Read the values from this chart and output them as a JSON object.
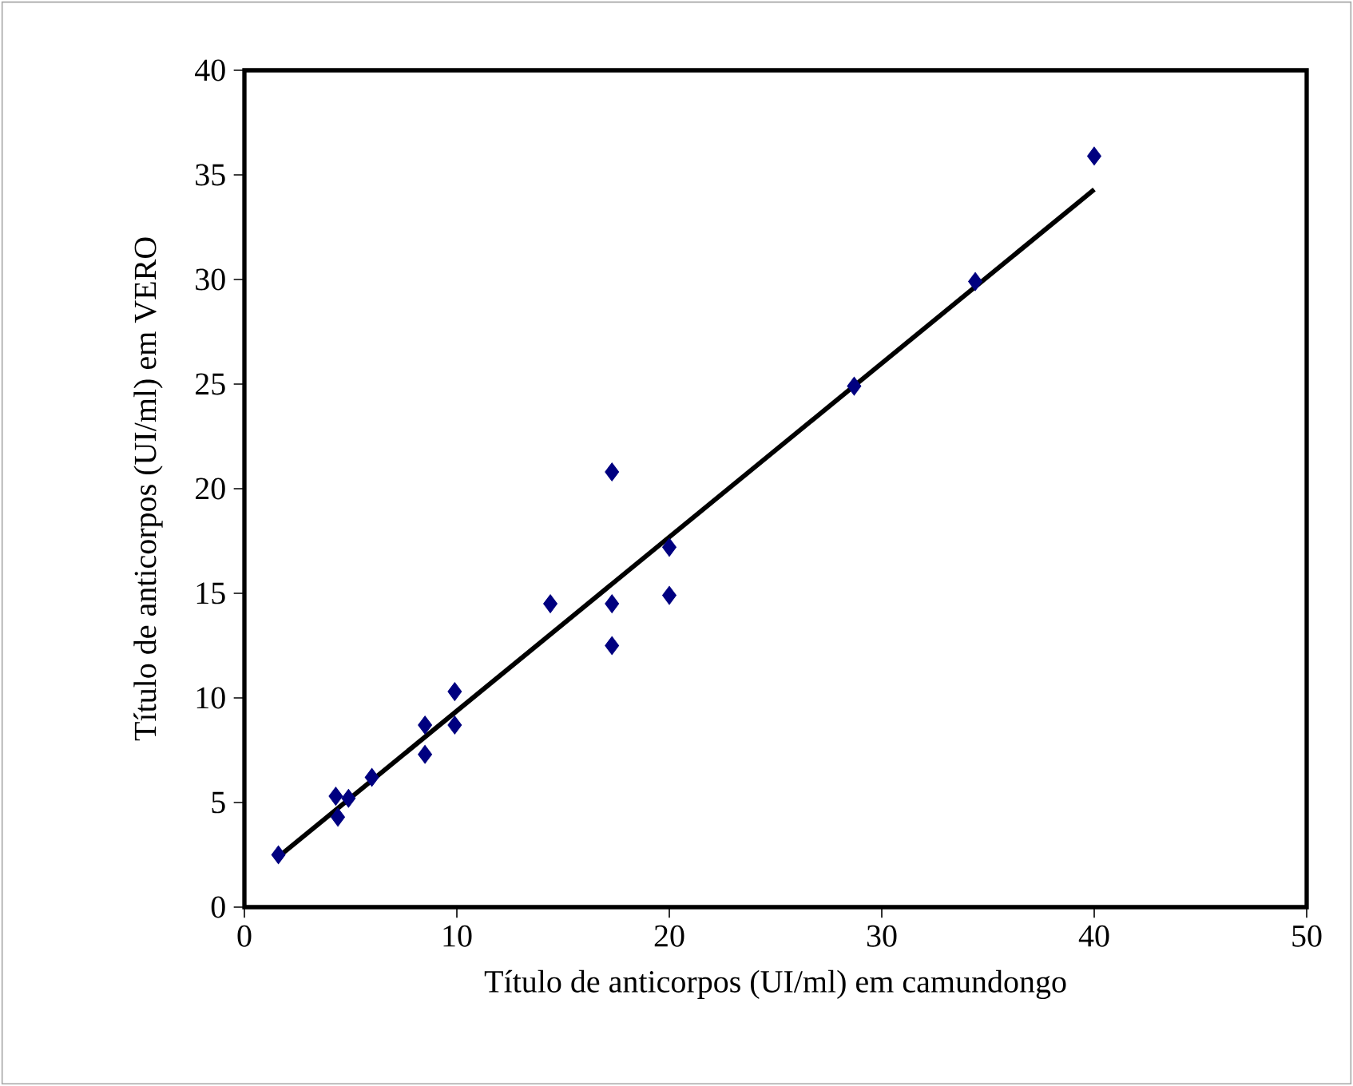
{
  "chart_data": {
    "type": "scatter",
    "xlabel": "Título de anticorpos (UI/ml) em camundongo",
    "ylabel": "Título de anticorpos (UI/ml) em VERO",
    "xlim": [
      0,
      50
    ],
    "ylim": [
      0,
      40
    ],
    "xticks": [
      0,
      10,
      20,
      30,
      40,
      50
    ],
    "yticks": [
      0,
      5,
      10,
      15,
      20,
      25,
      30,
      35,
      40
    ],
    "grid": false,
    "series": [
      {
        "marker": "diamond",
        "color": "#000080",
        "x": [
          1.6,
          4.3,
          4.9,
          4.4,
          6.0,
          8.5,
          8.5,
          9.9,
          9.9,
          14.4,
          17.3,
          17.3,
          17.3,
          20.0,
          20.0,
          28.7,
          34.4,
          40.0
        ],
        "values": [
          2.5,
          5.3,
          5.2,
          4.3,
          6.2,
          8.7,
          7.3,
          10.3,
          8.7,
          14.5,
          20.8,
          14.5,
          12.5,
          17.2,
          14.9,
          24.9,
          29.9,
          35.9
        ]
      },
      {
        "type": "line",
        "marker": "none",
        "line_style": "solid",
        "color": "#000000",
        "x": [
          1.6,
          40.0
        ],
        "values": [
          2.4,
          34.3
        ]
      }
    ]
  }
}
